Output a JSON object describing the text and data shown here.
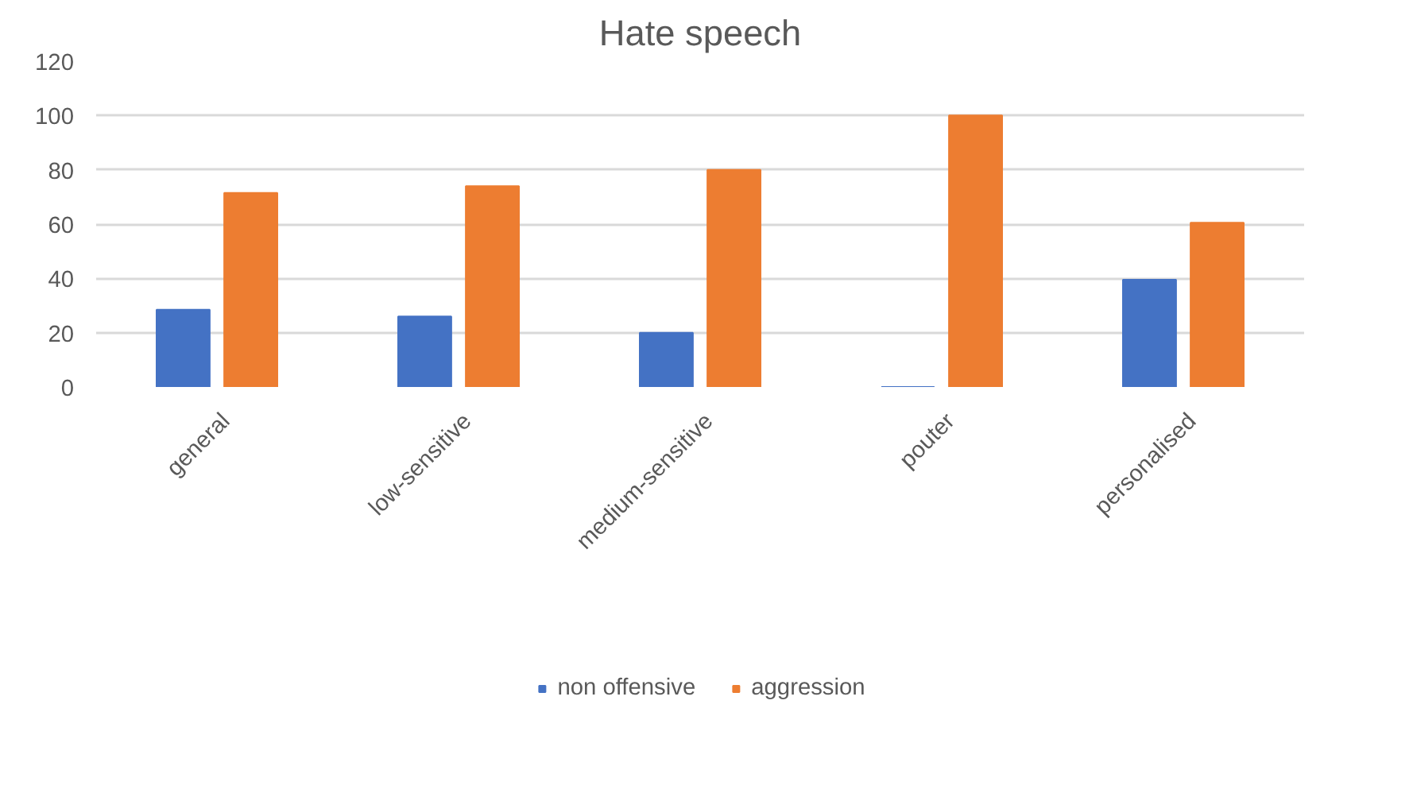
{
  "chart_data": {
    "type": "bar",
    "title": "Hate speech",
    "categories": [
      "general",
      "low-sensitive",
      "medium-sensitive",
      "pouter",
      "personalised"
    ],
    "series": [
      {
        "name": "non offensive",
        "color": "#4472c4",
        "values": [
          28.5,
          26,
          20,
          0,
          39.5
        ]
      },
      {
        "name": "aggression",
        "color": "#ed7d31",
        "values": [
          71.5,
          74,
          80,
          100,
          60.5
        ]
      }
    ],
    "ylim": [
      0,
      120
    ],
    "yticks": [
      0,
      20,
      40,
      60,
      80,
      100,
      120
    ],
    "grid": "y",
    "legend": "bottom"
  }
}
